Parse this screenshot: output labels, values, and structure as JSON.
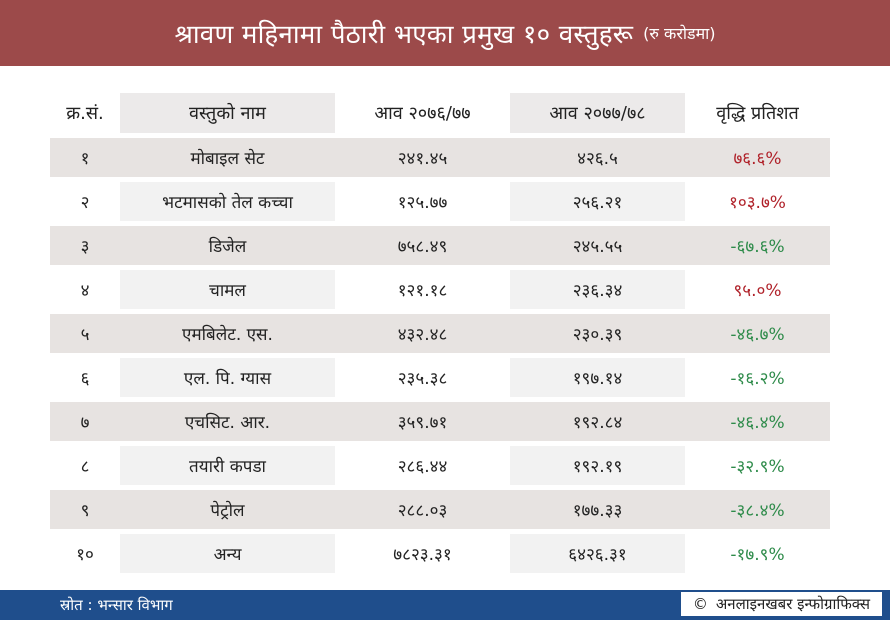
{
  "title": {
    "main": "श्रावण महिनामा पैठारी भएका प्रमुख १० वस्तुहरू",
    "unit": "(रु करोडमा)"
  },
  "table": {
    "headers": [
      "क्र.सं.",
      "वस्तुको नाम",
      "आव २०७६/७७",
      "आव २०७७/७८",
      "वृद्धि प्रतिशत"
    ],
    "rows": [
      {
        "sn": "१",
        "name": "मोबाइल सेट",
        "y1": "२४१.४५",
        "y2": "४२६.५",
        "growth": "७६.६%",
        "trend": "up"
      },
      {
        "sn": "२",
        "name": "भटमासको तेल कच्चा",
        "y1": "१२५.७७",
        "y2": "२५६.२१",
        "growth": "१०३.७%",
        "trend": "up"
      },
      {
        "sn": "३",
        "name": "डिजेल",
        "y1": "७५८.४९",
        "y2": "२४५.५५",
        "growth": "-६७.६%",
        "trend": "down"
      },
      {
        "sn": "४",
        "name": "चामल",
        "y1": "१२१.१८",
        "y2": "२३६.३४",
        "growth": "९५.०%",
        "trend": "up"
      },
      {
        "sn": "५",
        "name": "एमबिलेट. एस.",
        "y1": "४३२.४८",
        "y2": "२३०.३९",
        "growth": "-४६.७%",
        "trend": "down"
      },
      {
        "sn": "६",
        "name": "एल. पि. ग्यास",
        "y1": "२३५.३८",
        "y2": "१९७.१४",
        "growth": "-१६.२%",
        "trend": "down"
      },
      {
        "sn": "७",
        "name": "एचसिट. आर.",
        "y1": "३५९.७१",
        "y2": "१९२.८४",
        "growth": "-४६.४%",
        "trend": "down"
      },
      {
        "sn": "८",
        "name": "तयारी कपडा",
        "y1": "२८६.४४",
        "y2": "१९२.१९",
        "growth": "-३२.९%",
        "trend": "down"
      },
      {
        "sn": "९",
        "name": "पेट्रोल",
        "y1": "२८८.०३",
        "y2": "१७७.३३",
        "growth": "-३८.४%",
        "trend": "down"
      },
      {
        "sn": "१०",
        "name": "अन्य",
        "y1": "७८२३.३१",
        "y2": "६४२६.३१",
        "growth": "-१७.९%",
        "trend": "down"
      }
    ]
  },
  "footer": {
    "source": "स्रोत : भन्सार विभाग",
    "credit_icon": "copyright-icon",
    "credit_symbol": "©",
    "credit": "अनलाइनखबर इन्फोग्राफिक्स"
  },
  "colors": {
    "title_bg": "#9c4a4a",
    "footer_bg": "#1f4e8c",
    "positive": "#b0222a",
    "negative": "#2e8b4a"
  }
}
